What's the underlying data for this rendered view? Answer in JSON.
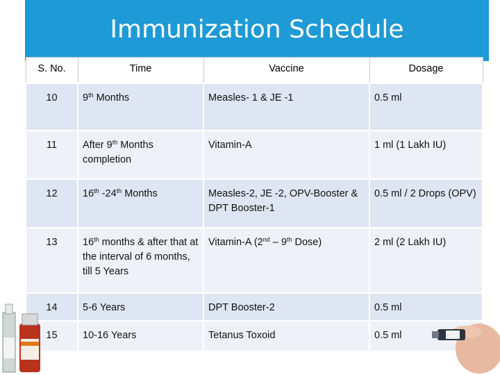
{
  "title": "Immunization Schedule",
  "headers": [
    "S. No.",
    "Time",
    "Vaccine",
    "Dosage"
  ],
  "rows": [
    {
      "sno": "10",
      "time": [
        "9",
        "th",
        " Months"
      ],
      "vaccine": [
        "Measles- 1 & JE -1"
      ],
      "dosage": [
        "0.5 ml"
      ]
    },
    {
      "sno": "11",
      "time": [
        "After 9",
        "th",
        " Months completion"
      ],
      "vaccine": [
        "Vitamin-A"
      ],
      "dosage": [
        "1 ml (1 Lakh IU)"
      ]
    },
    {
      "sno": "12",
      "time": [
        "16",
        "th",
        " -24",
        "th",
        " Months"
      ],
      "vaccine": [
        "Measles-2,  JE -2, OPV-Booster & DPT Booster-1"
      ],
      "dosage": [
        "0.5 ml / 2 Drops (OPV)"
      ]
    },
    {
      "sno": "13",
      "time": [
        "16",
        "th",
        " months & after that at the interval of 6 months, till 5 Years"
      ],
      "vaccine": [
        "Vitamin-A (2",
        "nd",
        " – 9",
        "th",
        " Dose)"
      ],
      "dosage": [
        "2 ml (2 Lakh IU)"
      ]
    },
    {
      "sno": "14",
      "time": [
        "5-6 Years"
      ],
      "vaccine": [
        "DPT Booster-2"
      ],
      "dosage": [
        "0.5 ml"
      ]
    },
    {
      "sno": "15",
      "time": [
        "10-16 Years"
      ],
      "vaccine": [
        "Tetanus Toxoid"
      ],
      "dosage": [
        "0.5 ml"
      ]
    }
  ],
  "colors": {
    "title_band": "#1e9ad6",
    "row_dark": "#dde6f2",
    "row_light": "#eef2f8"
  },
  "images": {
    "left": "vaccine-vials-photo",
    "right": "hand-holding-vial-photo"
  }
}
